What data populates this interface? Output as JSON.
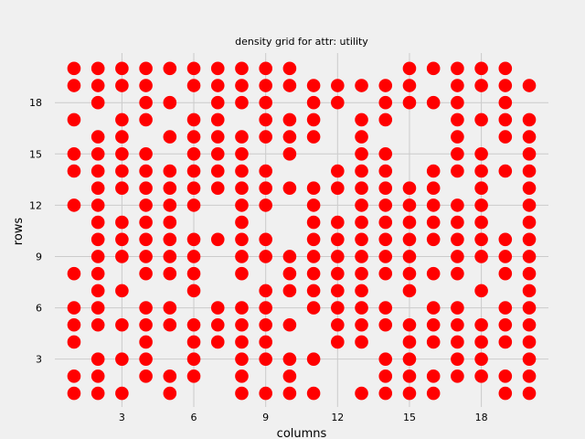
{
  "chart_data": {
    "type": "scatter",
    "title": "density grid for attr: utility",
    "xlabel": "columns",
    "ylabel": "rows",
    "xlim": [
      0.2,
      20.8
    ],
    "ylim": [
      0.2,
      20.9
    ],
    "xticks": [
      3,
      6,
      9,
      12,
      15,
      18
    ],
    "yticks": [
      3,
      6,
      9,
      12,
      15,
      18
    ],
    "grid": true,
    "marker_color": "#ff0000",
    "background": "#f0f0f0",
    "rows": [
      {
        "y": 20,
        "x": [
          1,
          2,
          3,
          4,
          5,
          6,
          7,
          8,
          9,
          10,
          15,
          16,
          17,
          18,
          19
        ]
      },
      {
        "y": 19,
        "x": [
          1,
          2,
          3,
          4,
          6,
          7,
          8,
          9,
          10,
          11,
          12,
          13,
          14,
          15,
          17,
          18,
          19,
          20
        ]
      },
      {
        "y": 18,
        "x": [
          2,
          4,
          5,
          7,
          8,
          9,
          11,
          12,
          14,
          15,
          16,
          17,
          19
        ]
      },
      {
        "y": 17,
        "x": [
          1,
          3,
          4,
          6,
          7,
          9,
          10,
          11,
          13,
          14,
          17,
          18,
          19,
          20
        ]
      },
      {
        "y": 16,
        "x": [
          2,
          3,
          5,
          6,
          7,
          8,
          9,
          10,
          11,
          13,
          17,
          19,
          20
        ]
      },
      {
        "y": 15,
        "x": [
          1,
          2,
          3,
          4,
          6,
          7,
          8,
          10,
          13,
          14,
          17,
          18,
          20
        ]
      },
      {
        "y": 14,
        "x": [
          1,
          2,
          3,
          4,
          5,
          6,
          7,
          8,
          9,
          12,
          13,
          14,
          16,
          17,
          18,
          19,
          20
        ]
      },
      {
        "y": 13,
        "x": [
          2,
          3,
          4,
          5,
          6,
          7,
          8,
          9,
          10,
          11,
          12,
          13,
          14,
          15,
          16,
          18,
          20
        ]
      },
      {
        "y": 12,
        "x": [
          1,
          2,
          4,
          5,
          6,
          8,
          9,
          11,
          13,
          14,
          15,
          16,
          17,
          18,
          20
        ]
      },
      {
        "y": 11,
        "x": [
          2,
          3,
          4,
          5,
          8,
          11,
          12,
          13,
          14,
          15,
          16,
          17,
          18,
          20
        ]
      },
      {
        "y": 10,
        "x": [
          2,
          3,
          4,
          5,
          6,
          7,
          8,
          9,
          11,
          12,
          13,
          14,
          15,
          16,
          17,
          18,
          19,
          20
        ]
      },
      {
        "y": 9,
        "x": [
          2,
          3,
          4,
          5,
          6,
          8,
          9,
          10,
          11,
          12,
          13,
          14,
          15,
          17,
          18,
          19,
          20
        ]
      },
      {
        "y": 8,
        "x": [
          1,
          2,
          4,
          5,
          6,
          8,
          10,
          11,
          12,
          13,
          14,
          15,
          16,
          17,
          19,
          20
        ]
      },
      {
        "y": 7,
        "x": [
          2,
          3,
          6,
          9,
          10,
          11,
          12,
          13,
          15,
          18,
          20
        ]
      },
      {
        "y": 6,
        "x": [
          1,
          2,
          4,
          5,
          7,
          8,
          9,
          11,
          12,
          13,
          14,
          16,
          17,
          19,
          20
        ]
      },
      {
        "y": 5,
        "x": [
          1,
          2,
          3,
          4,
          5,
          6,
          7,
          8,
          9,
          10,
          12,
          13,
          14,
          15,
          16,
          17,
          18,
          19,
          20
        ]
      },
      {
        "y": 4,
        "x": [
          1,
          4,
          6,
          7,
          8,
          9,
          12,
          13,
          15,
          16,
          17,
          18,
          19,
          20
        ]
      },
      {
        "y": 3,
        "x": [
          2,
          3,
          4,
          6,
          8,
          9,
          10,
          11,
          14,
          15,
          17,
          18,
          20
        ]
      },
      {
        "y": 2,
        "x": [
          1,
          2,
          4,
          5,
          6,
          8,
          10,
          14,
          15,
          16,
          17,
          18,
          19,
          20
        ]
      },
      {
        "y": 1,
        "x": [
          1,
          2,
          3,
          5,
          8,
          9,
          10,
          11,
          13,
          14,
          15,
          16,
          19,
          20
        ]
      }
    ]
  }
}
